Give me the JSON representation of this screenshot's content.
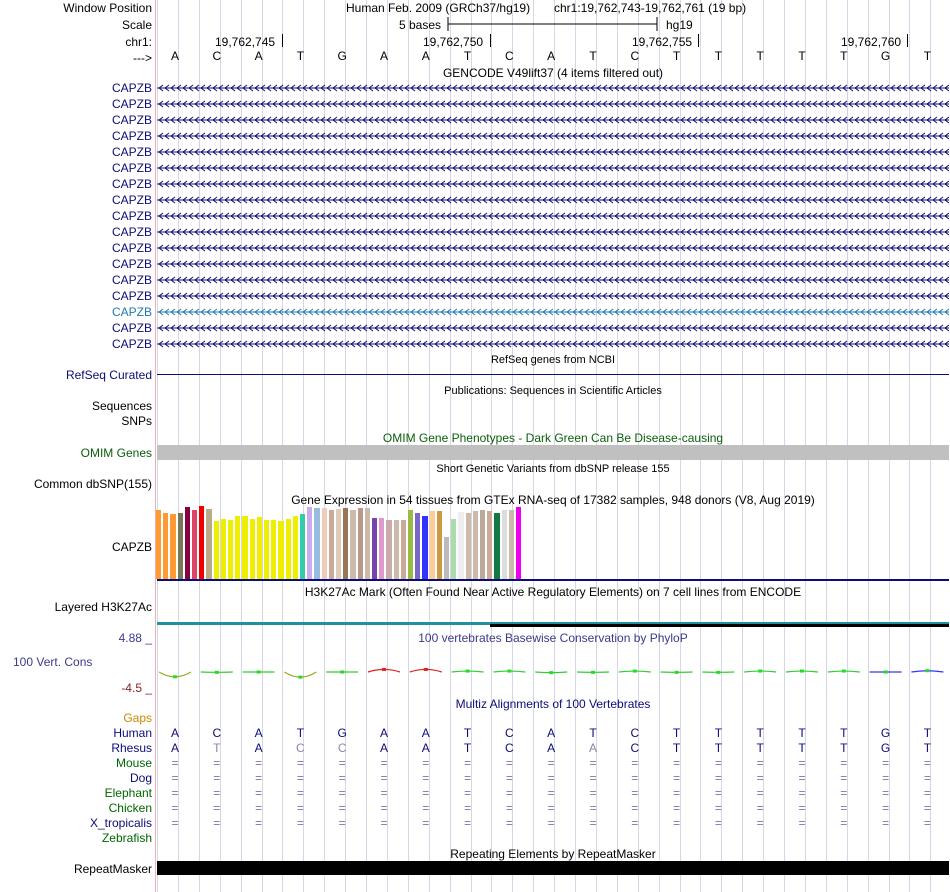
{
  "header": {
    "window_position_label": "Window Position",
    "scale_label": "Scale",
    "chr_label": "chr1:",
    "arrow_label": "--->",
    "assembly": "Human Feb. 2009 (GRCh37/hg19)",
    "region": "chr1:19,762,743-19,762,761 (19 bp)",
    "scale_text": "5 bases",
    "scale_db": "hg19",
    "coords": [
      "19,762,745",
      "19,762,750",
      "19,762,755",
      "19,762,760"
    ]
  },
  "sequence": [
    "A",
    "C",
    "A",
    "T",
    "G",
    "A",
    "A",
    "T",
    "C",
    "A",
    "T",
    "C",
    "T",
    "T",
    "T",
    "T",
    "T",
    "G",
    "T"
  ],
  "gencode": {
    "title": "GENCODE V49lift37 (4 items filtered out)",
    "genes": [
      "CAPZB",
      "CAPZB",
      "CAPZB",
      "CAPZB",
      "CAPZB",
      "CAPZB",
      "CAPZB",
      "CAPZB",
      "CAPZB",
      "CAPZB",
      "CAPZB",
      "CAPZB",
      "CAPZB",
      "CAPZB",
      "CAPZB",
      "CAPZB",
      "CAPZB"
    ],
    "colors": [
      "#0c0c78",
      "#0c0c78",
      "#0c0c78",
      "#0c0c78",
      "#0c0c78",
      "#0c0c78",
      "#0c0c78",
      "#0c0c78",
      "#0c0c78",
      "#0c0c78",
      "#0c0c78",
      "#0c0c78",
      "#0c0c78",
      "#0c0c78",
      "#1f77b4",
      "#0c0c78",
      "#0c0c78"
    ]
  },
  "refseq": {
    "title": "RefSeq genes from NCBI",
    "label": "RefSeq Curated"
  },
  "publications": {
    "title": "Publications: Sequences in Scientific Articles",
    "label1": "Sequences",
    "label2": "SNPs"
  },
  "omim": {
    "title": "OMIM Gene Phenotypes - Dark Green Can Be Disease-causing",
    "label": "OMIM Genes"
  },
  "dbsnp": {
    "title": "Short Genetic Variants from dbSNP release 155",
    "label": "Common dbSNP(155)"
  },
  "gtex": {
    "title": "Gene Expression in 54 tissues from GTEx RNA-seq of 17382 samples, 948 donors (V8, Aug 2019)",
    "label": "CAPZB",
    "bars": [
      {
        "v": 0.96,
        "c": "#ff9933"
      },
      {
        "v": 0.92,
        "c": "#ff9933"
      },
      {
        "v": 0.9,
        "c": "#ff9933"
      },
      {
        "v": 0.91,
        "c": "#777755"
      },
      {
        "v": 1.0,
        "c": "#880044"
      },
      {
        "v": 0.96,
        "c": "#dd4466"
      },
      {
        "v": 1.02,
        "c": "#ee0000"
      },
      {
        "v": 0.97,
        "c": "#bbaa88"
      },
      {
        "v": 0.8,
        "c": "#eeee00"
      },
      {
        "v": 0.84,
        "c": "#eeee00"
      },
      {
        "v": 0.82,
        "c": "#eeee00"
      },
      {
        "v": 0.88,
        "c": "#eeee00"
      },
      {
        "v": 0.87,
        "c": "#eeee00"
      },
      {
        "v": 0.84,
        "c": "#eeee00"
      },
      {
        "v": 0.86,
        "c": "#eeee00"
      },
      {
        "v": 0.82,
        "c": "#eeee00"
      },
      {
        "v": 0.82,
        "c": "#eeee00"
      },
      {
        "v": 0.8,
        "c": "#eeee00"
      },
      {
        "v": 0.84,
        "c": "#eeee00"
      },
      {
        "v": 0.88,
        "c": "#eeee00"
      },
      {
        "v": 0.9,
        "c": "#33ccaa"
      },
      {
        "v": 1.0,
        "c": "#ccaaee"
      },
      {
        "v": 0.98,
        "c": "#99bbdd"
      },
      {
        "v": 0.98,
        "c": "#eeccbb"
      },
      {
        "v": 0.96,
        "c": "#ccaa99"
      },
      {
        "v": 0.97,
        "c": "#ddccbb"
      },
      {
        "v": 0.99,
        "c": "#997755"
      },
      {
        "v": 0.96,
        "c": "#ccbbaa"
      },
      {
        "v": 0.99,
        "c": "#bb9988"
      },
      {
        "v": 0.98,
        "c": "#ccbbaa"
      },
      {
        "v": 0.85,
        "c": "#7744aa"
      },
      {
        "v": 0.85,
        "c": "#dd99cc"
      },
      {
        "v": 0.82,
        "c": "#ccaaaa"
      },
      {
        "v": 0.82,
        "c": "#ccbbaa"
      },
      {
        "v": 0.82,
        "c": "#ccaa99"
      },
      {
        "v": 0.96,
        "c": "#99bb44"
      },
      {
        "v": 0.92,
        "c": "#7766cc"
      },
      {
        "v": 0.88,
        "c": "#3333ff"
      },
      {
        "v": 0.94,
        "c": "#ffcc99"
      },
      {
        "v": 0.94,
        "c": "#cc9944"
      },
      {
        "v": 0.59,
        "c": "#bbbbbb"
      },
      {
        "v": 0.84,
        "c": "#aaddaa"
      },
      {
        "v": 0.93,
        "c": "#eeeeee"
      },
      {
        "v": 0.92,
        "c": "#ccbbaa"
      },
      {
        "v": 0.94,
        "c": "#ccbbaa"
      },
      {
        "v": 0.96,
        "c": "#bbaa99"
      },
      {
        "v": 0.94,
        "c": "#ccaa99"
      },
      {
        "v": 0.92,
        "c": "#117744"
      },
      {
        "v": 0.96,
        "c": "#dddddd"
      },
      {
        "v": 0.96,
        "c": "#ccbbaa"
      },
      {
        "v": 1.0,
        "c": "#ee00ee"
      }
    ]
  },
  "h3k27ac": {
    "title": "H3K27Ac Mark (Often Found Near Active Regulatory Elements) on 7 cell lines from ENCODE",
    "label": "Layered H3K27Ac"
  },
  "phylop": {
    "title": "100 vertebrates Basewise Conservation by PhyloP",
    "label": "100 Vert. Cons",
    "max": "4.88 _",
    "min": "-4.5 _",
    "scores": [
      -1.5,
      -0.1,
      0.0,
      -1.6,
      0.0,
      0.8,
      0.8,
      0.3,
      0.3,
      -0.2,
      -0.1,
      0.3,
      -0.1,
      -0.1,
      0.3,
      0.3,
      0.3,
      0.0,
      0.4
    ]
  },
  "multiz": {
    "title": "Multiz Alignments of 100 Vertebrates",
    "gaps_label": "Gaps",
    "species": [
      {
        "name": "Human",
        "color": "#0c0c78",
        "seq": [
          "A",
          "C",
          "A",
          "T",
          "G",
          "A",
          "A",
          "T",
          "C",
          "A",
          "T",
          "C",
          "T",
          "T",
          "T",
          "T",
          "T",
          "G",
          "T"
        ]
      },
      {
        "name": "Rhesus",
        "color": "#0c0c78",
        "seq": [
          "A",
          "T",
          "A",
          "C",
          "C",
          "A",
          "A",
          "T",
          "C",
          "A",
          "A",
          "C",
          "T",
          "T",
          "T",
          "T",
          "T",
          "G",
          "T"
        ]
      },
      {
        "name": "Mouse",
        "color": "#006600",
        "seq": [
          "=",
          "=",
          "=",
          "=",
          "=",
          "=",
          "=",
          "=",
          "=",
          "=",
          "=",
          "=",
          "=",
          "=",
          "=",
          "=",
          "=",
          "=",
          "="
        ]
      },
      {
        "name": "Dog",
        "color": "#0c0c78",
        "seq": [
          "=",
          "=",
          "=",
          "=",
          "=",
          "=",
          "=",
          "=",
          "=",
          "=",
          "=",
          "=",
          "=",
          "=",
          "=",
          "=",
          "=",
          "=",
          "="
        ]
      },
      {
        "name": "Elephant",
        "color": "#006600",
        "seq": [
          "=",
          "=",
          "=",
          "=",
          "=",
          "=",
          "=",
          "=",
          "=",
          "=",
          "=",
          "=",
          "=",
          "=",
          "=",
          "=",
          "=",
          "=",
          "="
        ]
      },
      {
        "name": "Chicken",
        "color": "#006600",
        "seq": [
          "=",
          "=",
          "=",
          "=",
          "=",
          "=",
          "=",
          "=",
          "=",
          "=",
          "=",
          "=",
          "=",
          "=",
          "=",
          "=",
          "=",
          "=",
          "="
        ]
      },
      {
        "name": "X_tropicalis",
        "color": "#0c0c78",
        "seq": [
          "=",
          "=",
          "=",
          "=",
          "=",
          "=",
          "=",
          "=",
          "=",
          "=",
          "=",
          "=",
          "=",
          "=",
          "=",
          "=",
          "=",
          "=",
          "="
        ]
      },
      {
        "name": "Zebrafish",
        "color": "#006600",
        "seq": [
          "",
          "",
          "",
          "",
          "",
          "",
          "",
          "",
          "",
          "",
          "",
          "",
          "",
          "",
          "",
          "",
          "",
          "",
          ""
        ]
      }
    ]
  },
  "repeatmasker": {
    "title": "Repeating Elements by RepeatMasker",
    "label": "RepeatMasker"
  },
  "colors": {
    "gene": "#0c0c78",
    "omim": "#0b5e0b",
    "phylop_title": "#3a3a8a",
    "gaps": "#cc8800"
  }
}
